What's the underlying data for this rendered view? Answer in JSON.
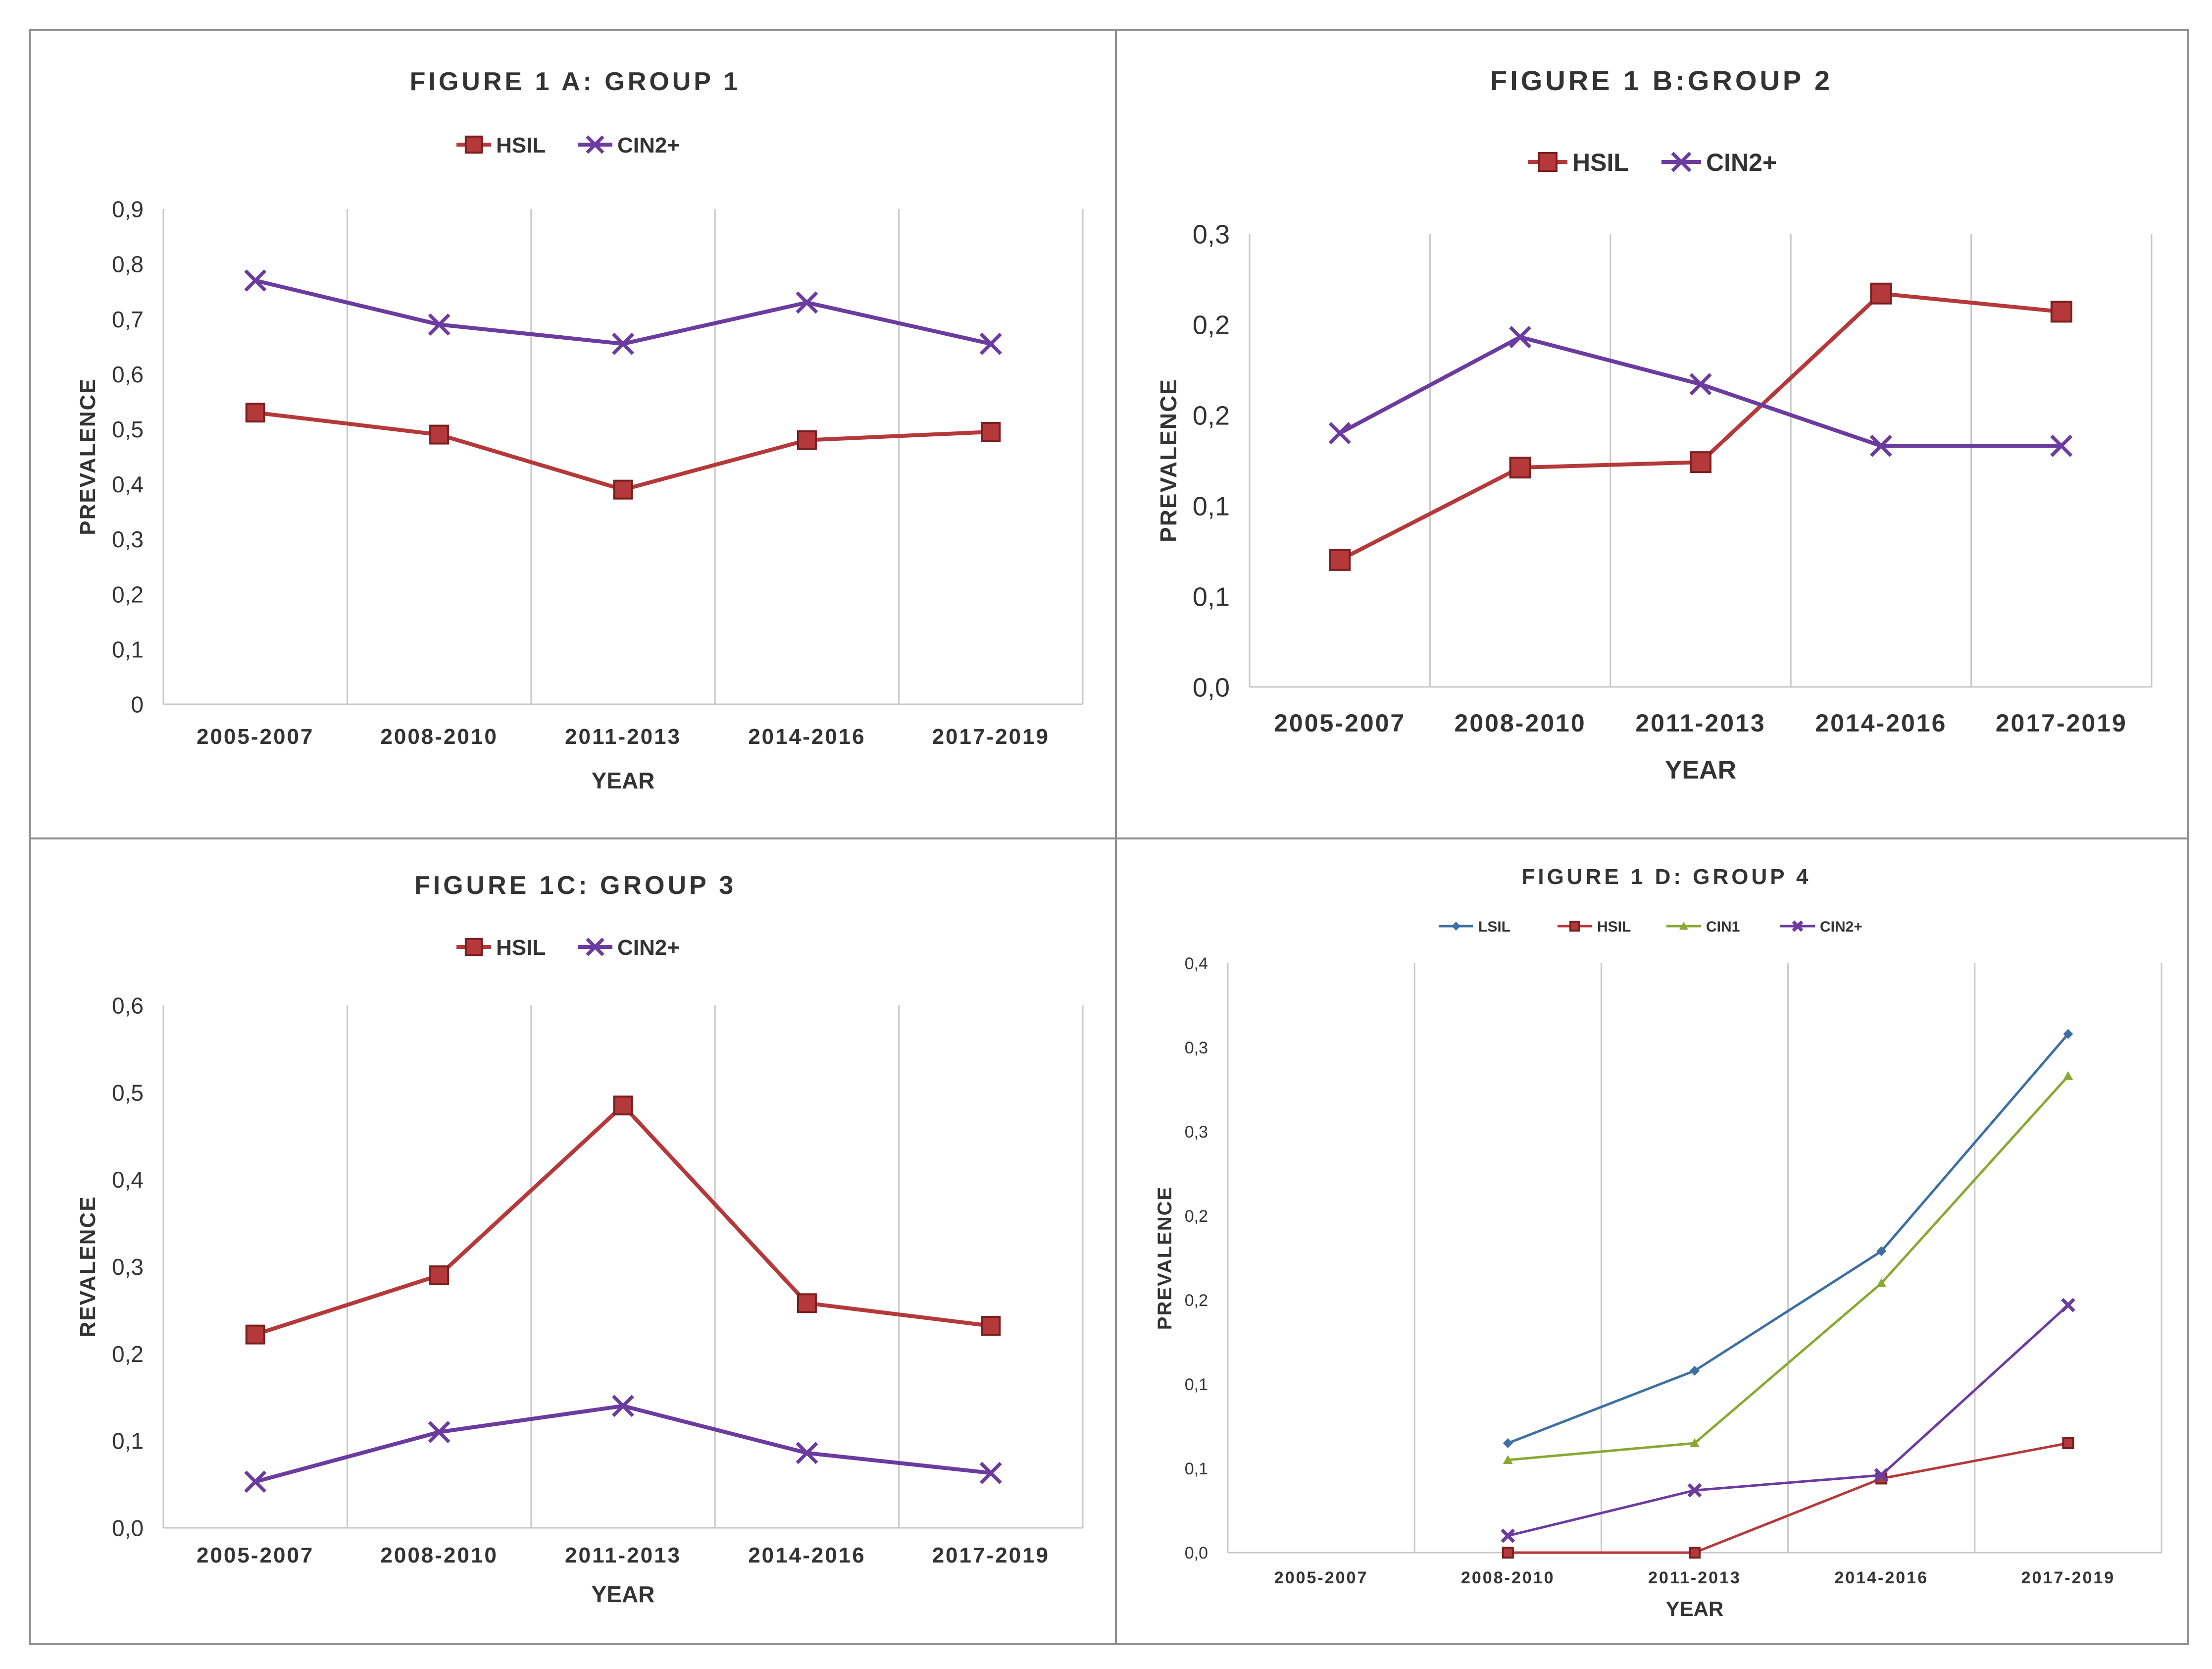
{
  "chart_data": [
    {
      "id": "A",
      "type": "line",
      "title": "FIGURE 1 A: GROUP 1",
      "xlabel": "YEAR",
      "ylabel": "PREVALENCE",
      "categories": [
        "2005-2007",
        "2008-2010",
        "2011-2013",
        "2014-2016",
        "2017-2019"
      ],
      "yticks": [
        "0",
        "0,1",
        "0,2",
        "0,3",
        "0,4",
        "0,5",
        "0,6",
        "0,7",
        "0,8",
        "0,9"
      ],
      "ylim": [
        0,
        0.9
      ],
      "legend": "top",
      "series": [
        {
          "name": "HSIL",
          "marker": "square",
          "color": "#b5393a",
          "values": [
            0.53,
            0.49,
            0.39,
            0.48,
            0.495
          ]
        },
        {
          "name": "CIN2+",
          "marker": "x",
          "color": "#6c3b9f",
          "values": [
            0.77,
            0.69,
            0.655,
            0.73,
            0.655
          ]
        }
      ]
    },
    {
      "id": "B",
      "type": "line",
      "title": "FIGURE 1 B:GROUP 2",
      "xlabel": "YEAR",
      "ylabel": "PREVALENCE",
      "categories": [
        "2005-2007",
        "2008-2010",
        "2011-2013",
        "2014-2016",
        "2017-2019"
      ],
      "yticks": [
        "0,0",
        "0,1",
        "0,1",
        "0,2",
        "0,2",
        "0,3"
      ],
      "ylim": [
        0,
        0.25
      ],
      "legend": "top",
      "series": [
        {
          "name": "HSIL",
          "marker": "square",
          "color": "#b5393a",
          "values": [
            0.07,
            0.121,
            0.124,
            0.217,
            0.207
          ]
        },
        {
          "name": "CIN2+",
          "marker": "x",
          "color": "#6c3b9f",
          "values": [
            0.14,
            0.193,
            0.167,
            0.133,
            0.133
          ]
        }
      ]
    },
    {
      "id": "C",
      "type": "line",
      "title": "FIGURE 1C: GROUP 3",
      "xlabel": "YEAR",
      "ylabel": "REVALENCE",
      "categories": [
        "2005-2007",
        "2008-2010",
        "2011-2013",
        "2014-2016",
        "2017-2019"
      ],
      "yticks": [
        "0,0",
        "0,1",
        "0,2",
        "0,3",
        "0,4",
        "0,5",
        "0,6"
      ],
      "ylim": [
        0,
        0.6
      ],
      "legend": "top",
      "series": [
        {
          "name": "HSIL",
          "marker": "square",
          "color": "#b5393a",
          "values": [
            0.222,
            0.29,
            0.485,
            0.258,
            0.232
          ]
        },
        {
          "name": "CIN2+",
          "marker": "x",
          "color": "#6c3b9f",
          "values": [
            0.053,
            0.11,
            0.14,
            0.086,
            0.063
          ]
        }
      ]
    },
    {
      "id": "D",
      "type": "line",
      "title": "FIGURE 1 D: GROUP 4",
      "xlabel": "YEAR",
      "ylabel": "PREVALENCE",
      "categories": [
        "2005-2007",
        "2008-2010",
        "2011-2013",
        "2014-2016",
        "2017-2019"
      ],
      "yticks": [
        "0,0",
        "0,1",
        "0,1",
        "0,2",
        "0,2",
        "0,3",
        "0,3",
        "0,4"
      ],
      "ylim": [
        0,
        0.35
      ],
      "legend": "top",
      "series": [
        {
          "name": "LSIL",
          "marker": "diamond",
          "color": "#3d6fa3",
          "values": [
            null,
            0.065,
            0.108,
            0.179,
            0.308
          ]
        },
        {
          "name": "HSIL",
          "marker": "square",
          "color": "#b5393a",
          "values": [
            null,
            0.0,
            0.0,
            0.044,
            0.065
          ]
        },
        {
          "name": "CIN1",
          "marker": "triangle",
          "color": "#8aa833",
          "values": [
            null,
            0.055,
            0.065,
            0.16,
            0.283
          ]
        },
        {
          "name": "CIN2+",
          "marker": "x",
          "color": "#6c3b9f",
          "values": [
            null,
            0.01,
            0.037,
            0.046,
            0.147
          ]
        }
      ]
    }
  ]
}
